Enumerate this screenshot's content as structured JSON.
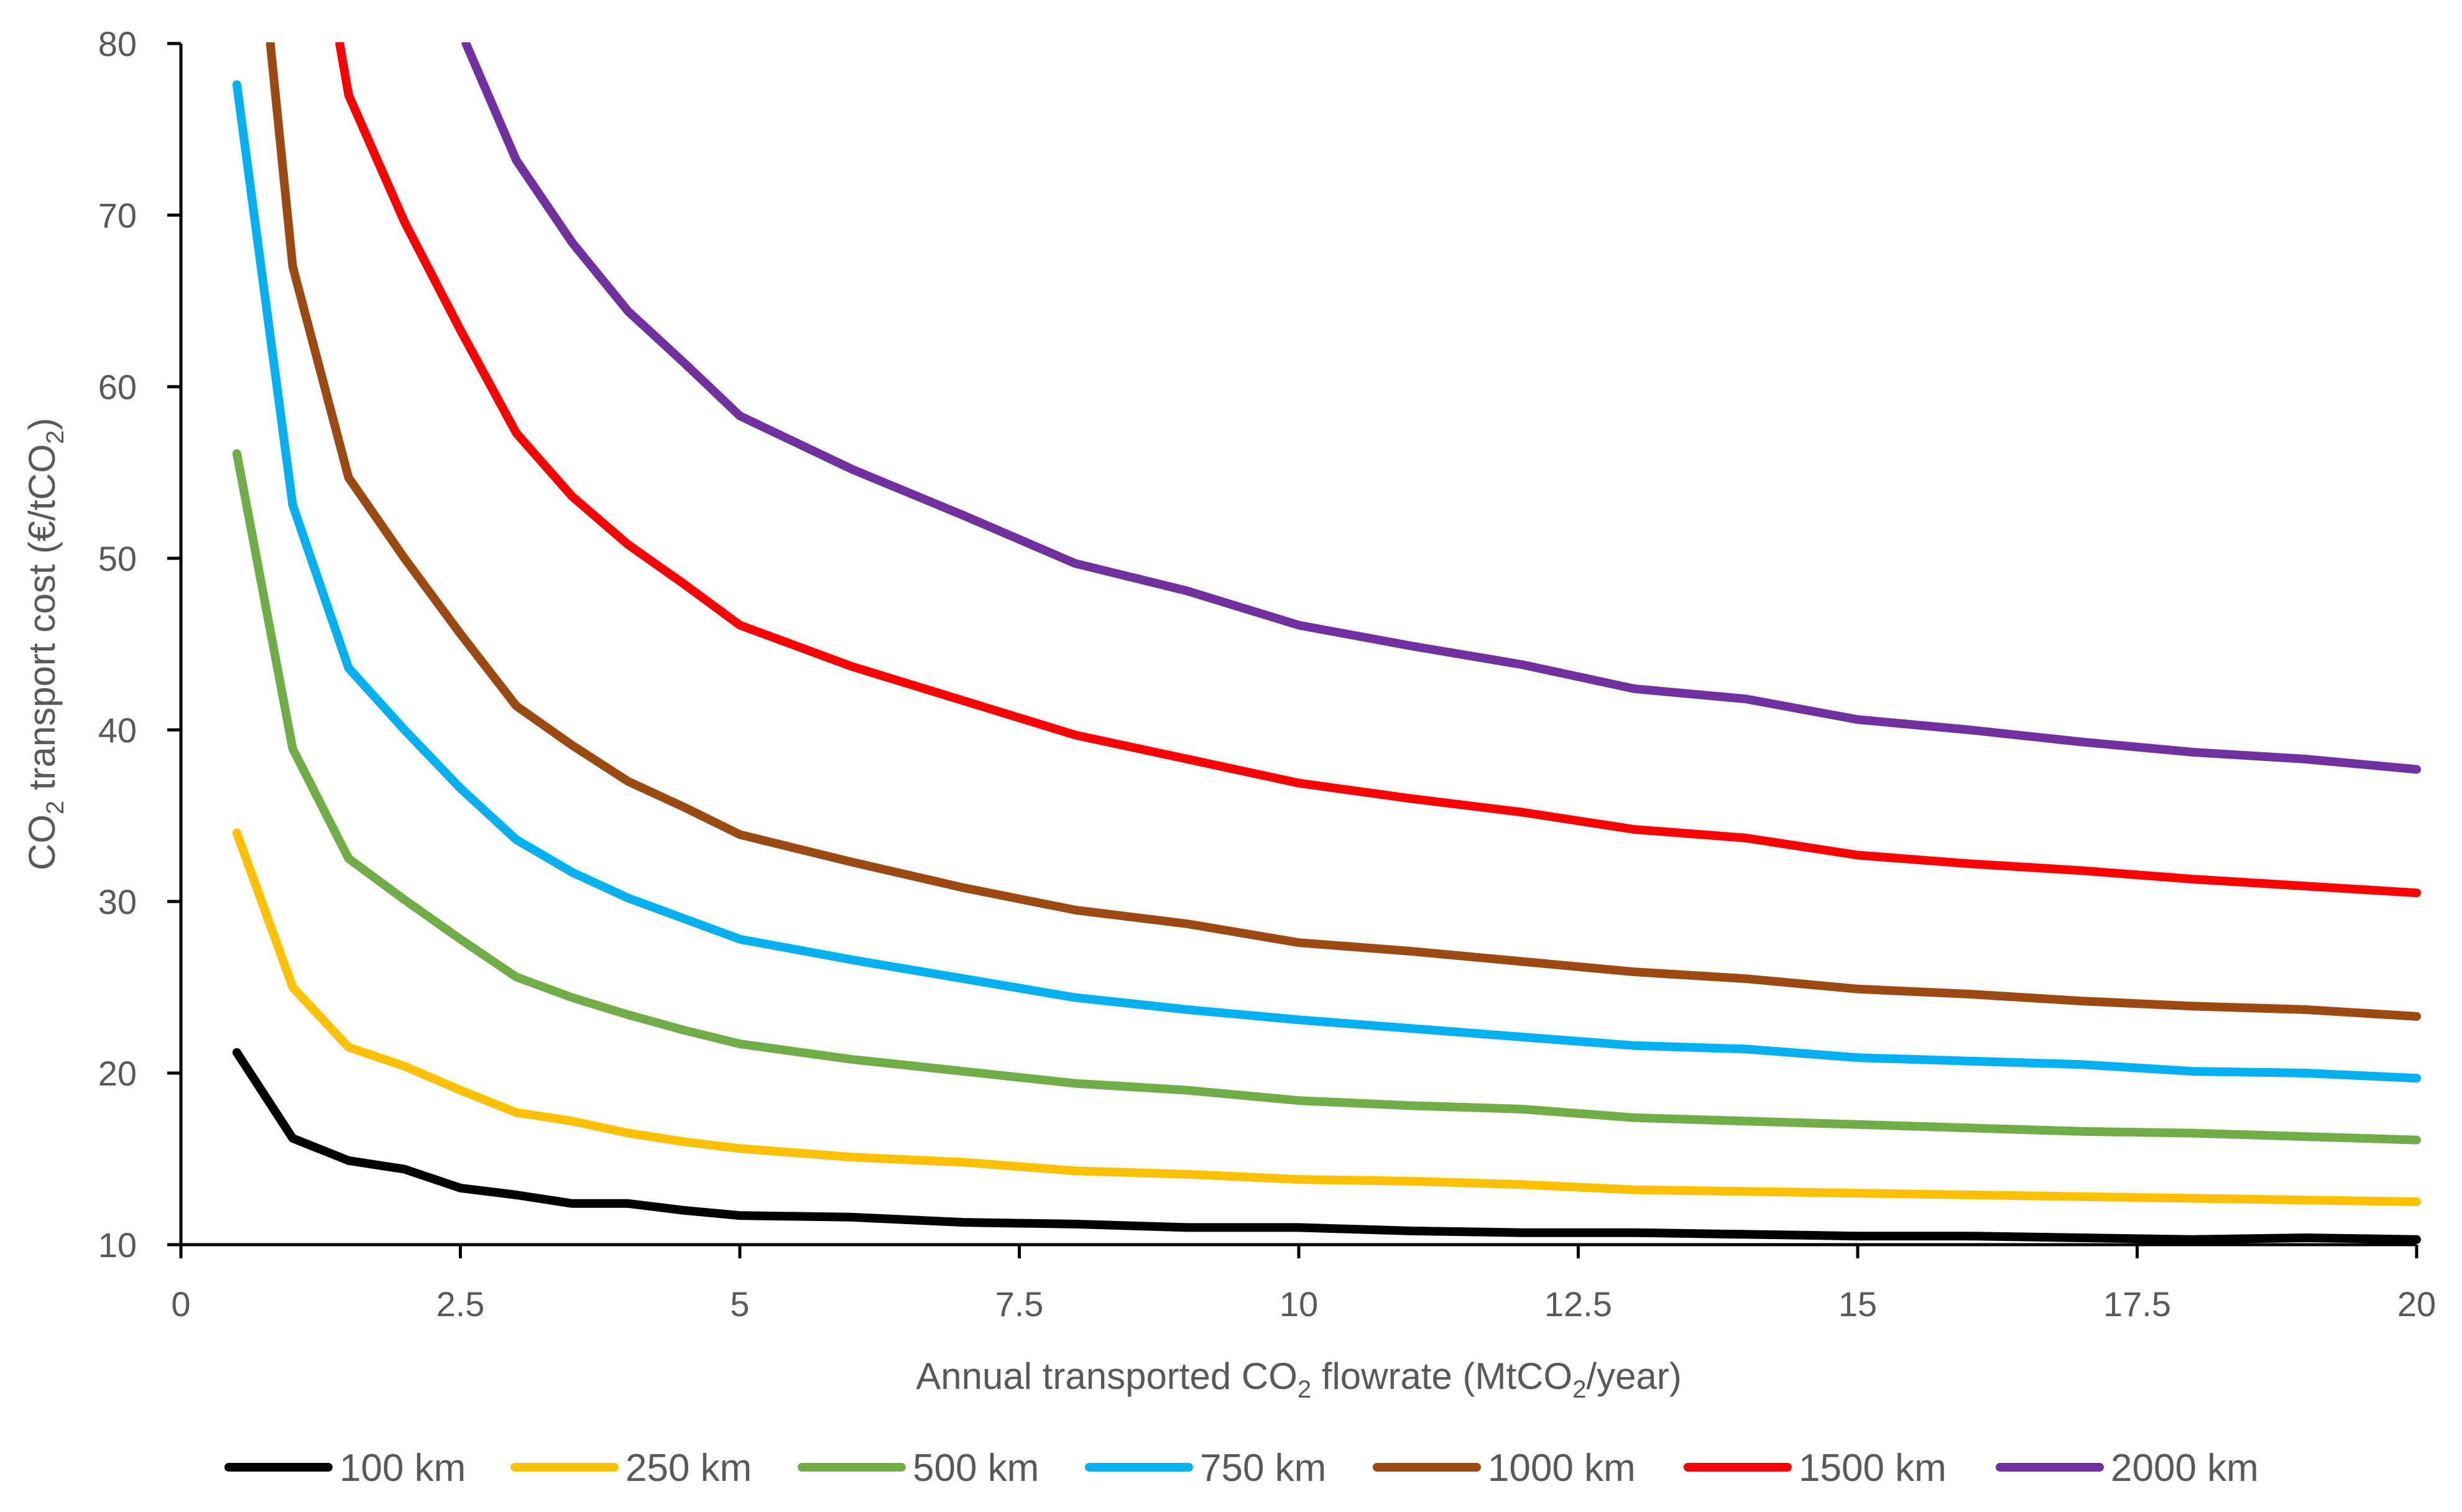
{
  "chart_data": {
    "type": "line",
    "title": "",
    "xlabel": {
      "main": "Annual transported CO",
      "sub1": "2",
      "mid": " flowrate (MtCO",
      "sub2": "2",
      "end": "/year)"
    },
    "ylabel": {
      "main": "CO",
      "sub1": "2",
      "mid": " transport cost (€/tCO",
      "sub2": "2",
      "end": ")"
    },
    "xlim": [
      0,
      20
    ],
    "ylim": [
      10,
      80
    ],
    "x_ticks": [
      "0",
      "2.5",
      "5",
      "7.5",
      "10",
      "12.5",
      "15",
      "17.5",
      "20"
    ],
    "x_tick_values": [
      0,
      2.5,
      5,
      7.5,
      10,
      12.5,
      15,
      17.5,
      20
    ],
    "y_ticks": [
      "10",
      "20",
      "30",
      "40",
      "50",
      "60",
      "70",
      "80"
    ],
    "y_tick_values": [
      10,
      20,
      30,
      40,
      50,
      60,
      70,
      80
    ],
    "grid": false,
    "legend_position": "bottom",
    "series": [
      {
        "name": "100 km",
        "color": "#000000",
        "x": [
          0.5,
          1,
          1.5,
          2,
          2.5,
          3,
          3.5,
          4,
          4.5,
          5,
          6,
          7,
          8,
          9,
          10,
          11,
          12,
          13,
          14,
          15,
          16,
          17,
          18,
          19,
          20
        ],
        "y": [
          21.2,
          16.2,
          14.9,
          14.4,
          13.3,
          12.9,
          12.4,
          12.4,
          12.0,
          11.7,
          11.6,
          11.3,
          11.2,
          11.0,
          11.0,
          10.8,
          10.7,
          10.7,
          10.6,
          10.5,
          10.5,
          10.4,
          10.3,
          10.4,
          10.3
        ]
      },
      {
        "name": "250 km",
        "color": "#FFC000",
        "x": [
          0.5,
          1,
          1.5,
          2,
          2.5,
          3,
          3.5,
          4,
          4.5,
          5,
          6,
          7,
          8,
          9,
          10,
          11,
          12,
          13,
          14,
          15,
          16,
          17,
          18,
          19,
          20
        ],
        "y": [
          34.0,
          25.0,
          21.5,
          20.4,
          19.0,
          17.7,
          17.2,
          16.5,
          16.0,
          15.6,
          15.1,
          14.8,
          14.3,
          14.1,
          13.8,
          13.7,
          13.5,
          13.2,
          13.1,
          13.0,
          12.9,
          12.8,
          12.7,
          12.6,
          12.5
        ]
      },
      {
        "name": "500 km",
        "color": "#70AD47",
        "x": [
          0.5,
          1,
          1.5,
          2,
          2.5,
          3,
          3.5,
          4,
          4.5,
          5,
          6,
          7,
          8,
          9,
          10,
          11,
          12,
          13,
          14,
          15,
          16,
          17,
          18,
          19,
          20
        ],
        "y": [
          56.1,
          38.9,
          32.5,
          30.1,
          27.8,
          25.6,
          24.4,
          23.4,
          22.5,
          21.7,
          20.8,
          20.1,
          19.4,
          19.0,
          18.4,
          18.1,
          17.9,
          17.4,
          17.2,
          17.0,
          16.8,
          16.6,
          16.5,
          16.3,
          16.1
        ]
      },
      {
        "name": "750 km",
        "color": "#00B0F0",
        "x": [
          0.5,
          1,
          1.5,
          2,
          2.5,
          3,
          3.5,
          4,
          4.5,
          5,
          6,
          7,
          8,
          9,
          10,
          11,
          12,
          13,
          14,
          15,
          16,
          17,
          18,
          19,
          20
        ],
        "y": [
          77.6,
          53.1,
          43.6,
          40.0,
          36.6,
          33.6,
          31.7,
          30.2,
          29.0,
          27.8,
          26.6,
          25.5,
          24.4,
          23.7,
          23.1,
          22.6,
          22.1,
          21.6,
          21.4,
          20.9,
          20.7,
          20.5,
          20.1,
          20.0,
          19.7
        ]
      },
      {
        "name": "1000 km",
        "color": "#9C4A12",
        "x": [
          0.8,
          1,
          1.5,
          2,
          2.5,
          3,
          3.5,
          4,
          4.5,
          5,
          6,
          7,
          8,
          9,
          10,
          11,
          12,
          13,
          14,
          15,
          16,
          17,
          18,
          19,
          20
        ],
        "y": [
          80.0,
          67.0,
          54.7,
          50.0,
          45.6,
          41.4,
          39.1,
          37.0,
          35.5,
          33.9,
          32.3,
          30.8,
          29.5,
          28.7,
          27.6,
          27.1,
          26.5,
          25.9,
          25.5,
          24.9,
          24.6,
          24.2,
          23.9,
          23.7,
          23.3
        ]
      },
      {
        "name": "1500 km",
        "color": "#FF0000",
        "x": [
          1.42,
          1.5,
          2,
          2.5,
          3,
          3.5,
          4,
          4.5,
          5,
          6,
          7,
          8,
          9,
          10,
          11,
          12,
          13,
          14,
          15,
          16,
          17,
          18,
          19,
          20
        ],
        "y": [
          80.0,
          77.0,
          69.6,
          63.3,
          57.3,
          53.6,
          50.8,
          48.5,
          46.1,
          43.7,
          41.7,
          39.7,
          38.3,
          36.9,
          36.0,
          35.2,
          34.2,
          33.7,
          32.7,
          32.2,
          31.8,
          31.3,
          30.9,
          30.5
        ]
      },
      {
        "name": "2000 km",
        "color": "#7030A0",
        "x": [
          2.55,
          3,
          3.5,
          4,
          4.5,
          5,
          6,
          7,
          8,
          9,
          10,
          11,
          12,
          13,
          14,
          15,
          16,
          17,
          18,
          19,
          20
        ],
        "y": [
          80.0,
          73.2,
          68.4,
          64.4,
          61.4,
          58.3,
          55.2,
          52.5,
          49.7,
          48.1,
          46.1,
          44.9,
          43.8,
          42.4,
          41.8,
          40.6,
          40.0,
          39.3,
          38.7,
          38.3,
          37.7
        ]
      }
    ]
  }
}
